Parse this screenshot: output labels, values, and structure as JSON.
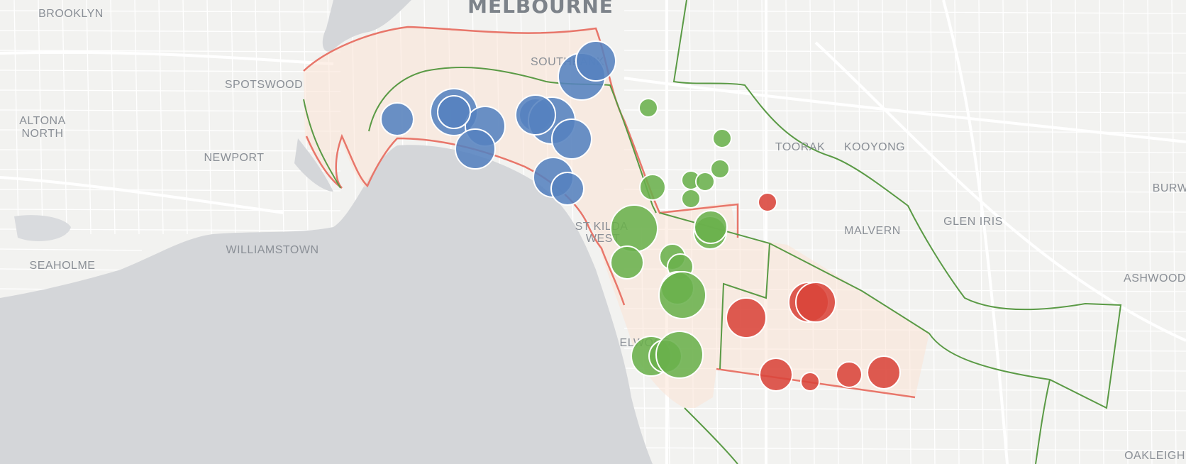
{
  "map": {
    "place_labels": [
      {
        "text": "MELBOURNE",
        "kind": "city"
      },
      {
        "text": "BROOKLYN",
        "kind": "suburb"
      },
      {
        "text": "SPOTSWOOD",
        "kind": "suburb"
      },
      {
        "text": "ALTONA",
        "kind": "suburb"
      },
      {
        "text": "NORTH",
        "kind": "suburb"
      },
      {
        "text": "NEWPORT",
        "kind": "suburb"
      },
      {
        "text": "WILLIAMSTOWN",
        "kind": "suburb"
      },
      {
        "text": "SEAHOLME",
        "kind": "suburb"
      },
      {
        "text": "SOUTHBANK",
        "kind": "suburb"
      },
      {
        "text": "TOORAK",
        "kind": "suburb"
      },
      {
        "text": "KOOYONG",
        "kind": "suburb"
      },
      {
        "text": "MALVERN",
        "kind": "suburb"
      },
      {
        "text": "GLEN IRIS",
        "kind": "suburb"
      },
      {
        "text": "BURW",
        "kind": "suburb"
      },
      {
        "text": "ASHWOOD",
        "kind": "suburb"
      },
      {
        "text": "ST KILDA",
        "kind": "suburb"
      },
      {
        "text": "WEST",
        "kind": "suburb"
      },
      {
        "text": "ELWOOD",
        "kind": "suburb"
      },
      {
        "text": "OAKLEIGH",
        "kind": "suburb"
      }
    ],
    "colors": {
      "water": "#d4d6d9",
      "land": "#f2f2f0",
      "region_fill": "#fbe3d6",
      "region_outline_red": "#e8766a",
      "region_outline_green": "#5a9a45",
      "marker_blue": "#5582bf",
      "marker_green": "#6ab04c",
      "marker_red": "#d9443a"
    },
    "marker_groups": [
      {
        "color": "blue",
        "sizes": [
          3,
          5,
          4,
          4,
          3,
          5,
          4,
          4,
          3,
          5,
          4,
          4,
          3
        ]
      },
      {
        "color": "green",
        "sizes": [
          1,
          1,
          1,
          1,
          2,
          1,
          1,
          5,
          3,
          3,
          3,
          2,
          2,
          3,
          5,
          4,
          3,
          5
        ]
      },
      {
        "color": "red",
        "sizes": [
          1,
          4,
          4,
          4,
          3,
          1,
          2,
          3
        ]
      }
    ]
  }
}
